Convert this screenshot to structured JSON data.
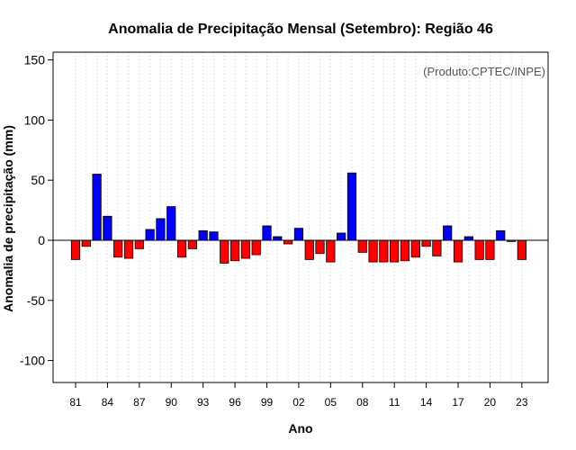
{
  "chart_data": {
    "type": "bar",
    "title": "Anomalia de Precipitação Mensal (Setembro): Região 46",
    "xlabel": "Ano",
    "ylabel": "Anomalia de precipitação (mm)",
    "credit": "(Produto:CPTEC/INPE)",
    "ylim": [
      -120,
      155
    ],
    "yticks": [
      -100,
      -50,
      0,
      50,
      100,
      150
    ],
    "xtick_labels": [
      "81",
      "84",
      "87",
      "90",
      "93",
      "96",
      "99",
      "02",
      "05",
      "08",
      "11",
      "14",
      "17",
      "20",
      "23"
    ],
    "grid": "vertical dotted",
    "colors": {
      "positive": "#0000ff",
      "negative": "#ff0000"
    },
    "x": [
      1981,
      1982,
      1983,
      1984,
      1985,
      1986,
      1987,
      1988,
      1989,
      1990,
      1991,
      1992,
      1993,
      1994,
      1995,
      1996,
      1997,
      1998,
      1999,
      2000,
      2001,
      2002,
      2003,
      2004,
      2005,
      2006,
      2007,
      2008,
      2009,
      2010,
      2011,
      2012,
      2013,
      2014,
      2015,
      2016,
      2017,
      2018,
      2019,
      2020,
      2021,
      2022,
      2023
    ],
    "values": [
      -16,
      -5,
      55,
      20,
      -14,
      -15,
      -7,
      9,
      18,
      28,
      -14,
      -7,
      8,
      7,
      -19,
      -17,
      -15,
      -12,
      12,
      3,
      -3,
      10,
      -16,
      -11,
      -18,
      6,
      56,
      -10,
      -18,
      -18,
      -18,
      -17,
      -14,
      -5,
      -13,
      12,
      -18,
      3,
      -16,
      -16,
      8,
      -1,
      -16
    ]
  }
}
